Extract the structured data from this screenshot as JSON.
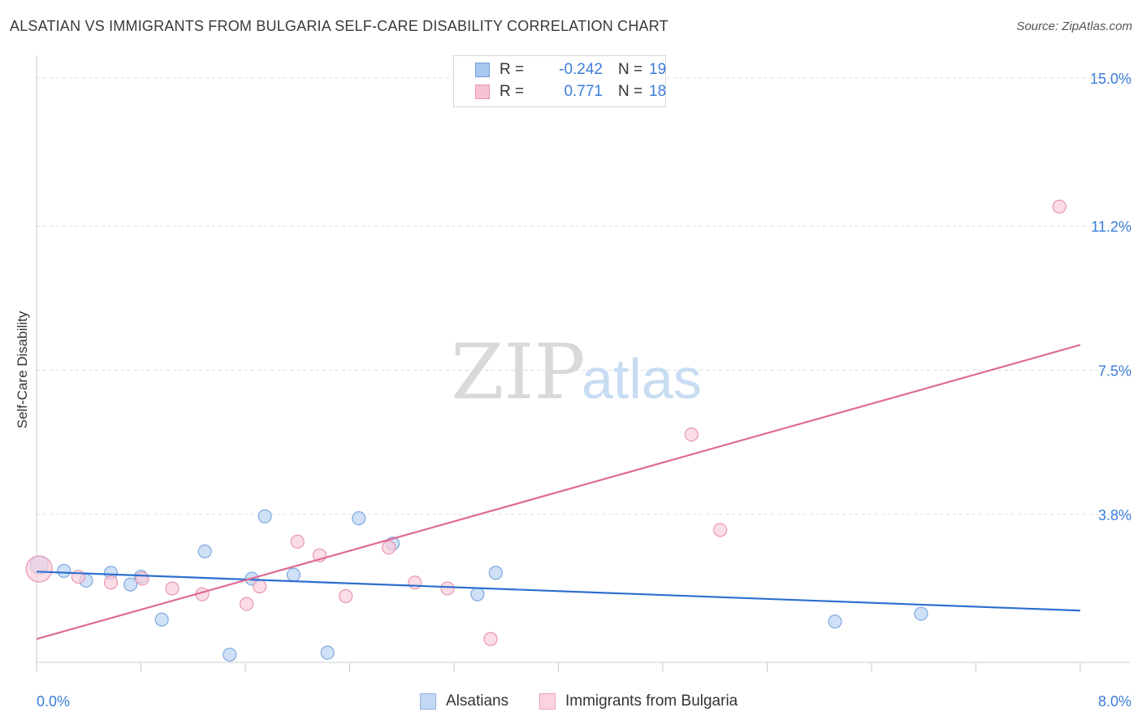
{
  "title": "ALSATIAN VS IMMIGRANTS FROM BULGARIA SELF-CARE DISABILITY CORRELATION CHART",
  "source": "Source: ZipAtlas.com",
  "watermark": {
    "zip": "ZIP",
    "atlas": "atlas"
  },
  "legend_top": {
    "rows": [
      {
        "r_label": "R =",
        "r_value": "-0.242",
        "n_label": "N =",
        "n_value": "19",
        "color": "#a9c8f0",
        "border": "#6f9fd8"
      },
      {
        "r_label": "R =",
        "r_value": "0.771",
        "n_label": "N =",
        "n_value": "18",
        "color": "#f7c3d2",
        "border": "#e693ac"
      }
    ]
  },
  "legend_bottom": [
    {
      "label": "Alsatians",
      "color": "#c3d8f5",
      "border": "#8db3e3"
    },
    {
      "label": "Immigrants from Bulgaria",
      "color": "#fbd3de",
      "border": "#ec9fb6"
    }
  ],
  "colors": {
    "blue_fill": "#c7dbf6",
    "blue_stroke": "#7fa9df",
    "blue_line": "#2c6fd0",
    "pink_fill": "#f9cfdb",
    "pink_stroke": "#e896ae",
    "pink_line": "#e06a94",
    "tick_label": "#3b7dd8",
    "grid": "#dcdcdc"
  },
  "chart_data": {
    "type": "scatter",
    "title": "ALSATIAN VS IMMIGRANTS FROM BULGARIA SELF-CARE DISABILITY CORRELATION CHART",
    "xlabel": "",
    "ylabel": "Self-Care Disability",
    "xlim": [
      0.0,
      8.0
    ],
    "ylim": [
      0.0,
      15.0
    ],
    "x_tick_labels": [
      {
        "value": 0.0,
        "label": "0.0%"
      },
      {
        "value": 8.0,
        "label": "8.0%"
      }
    ],
    "y_tick_labels": [
      {
        "value": 3.8,
        "label": "3.8%"
      },
      {
        "value": 7.5,
        "label": "7.5%"
      },
      {
        "value": 11.2,
        "label": "11.2%"
      },
      {
        "value": 15.0,
        "label": "15.0%"
      }
    ],
    "series": [
      {
        "name": "Alsatians",
        "R": -0.242,
        "N": 19,
        "points": [
          {
            "x": 0.02,
            "y": 2.5
          },
          {
            "x": 0.21,
            "y": 2.35
          },
          {
            "x": 0.38,
            "y": 2.1
          },
          {
            "x": 0.57,
            "y": 2.3
          },
          {
            "x": 0.72,
            "y": 2.0
          },
          {
            "x": 0.8,
            "y": 2.2
          },
          {
            "x": 0.96,
            "y": 1.1
          },
          {
            "x": 1.29,
            "y": 2.85
          },
          {
            "x": 1.48,
            "y": 0.2
          },
          {
            "x": 1.65,
            "y": 2.15
          },
          {
            "x": 1.75,
            "y": 3.75
          },
          {
            "x": 1.97,
            "y": 2.25
          },
          {
            "x": 2.23,
            "y": 0.25
          },
          {
            "x": 2.47,
            "y": 3.7
          },
          {
            "x": 2.73,
            "y": 3.05
          },
          {
            "x": 3.38,
            "y": 1.75
          },
          {
            "x": 3.52,
            "y": 2.3
          },
          {
            "x": 6.12,
            "y": 1.05
          },
          {
            "x": 6.78,
            "y": 1.25
          }
        ],
        "trend": {
          "x0": 0.0,
          "y0": 2.33,
          "x1": 8.0,
          "y1": 1.33
        }
      },
      {
        "name": "Immigrants from Bulgaria",
        "R": 0.771,
        "N": 18,
        "points": [
          {
            "x": 0.02,
            "y": 2.4
          },
          {
            "x": 0.32,
            "y": 2.2
          },
          {
            "x": 0.57,
            "y": 2.05
          },
          {
            "x": 0.81,
            "y": 2.15
          },
          {
            "x": 1.04,
            "y": 1.9
          },
          {
            "x": 1.27,
            "y": 1.75
          },
          {
            "x": 1.61,
            "y": 1.5
          },
          {
            "x": 1.71,
            "y": 1.95
          },
          {
            "x": 2.0,
            "y": 3.1
          },
          {
            "x": 2.17,
            "y": 2.75
          },
          {
            "x": 2.37,
            "y": 1.7
          },
          {
            "x": 2.7,
            "y": 2.95
          },
          {
            "x": 2.9,
            "y": 2.05
          },
          {
            "x": 3.15,
            "y": 1.9
          },
          {
            "x": 3.48,
            "y": 0.6
          },
          {
            "x": 5.02,
            "y": 5.85
          },
          {
            "x": 5.24,
            "y": 3.4
          },
          {
            "x": 7.84,
            "y": 11.7
          }
        ],
        "trend": {
          "x0": 0.0,
          "y0": 0.6,
          "x1": 8.0,
          "y1": 8.15
        }
      }
    ]
  }
}
